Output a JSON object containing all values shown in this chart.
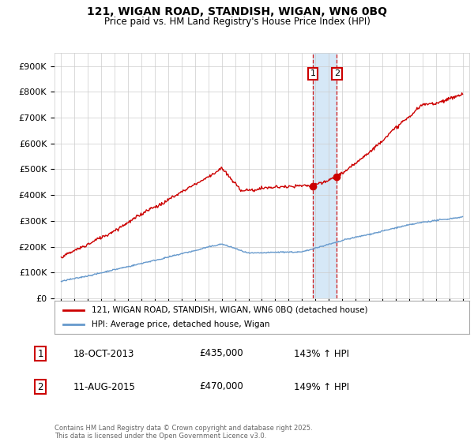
{
  "title": "121, WIGAN ROAD, STANDISH, WIGAN, WN6 0BQ",
  "subtitle": "Price paid vs. HM Land Registry's House Price Index (HPI)",
  "ylim": [
    0,
    950000
  ],
  "yticks": [
    0,
    100000,
    200000,
    300000,
    400000,
    500000,
    600000,
    700000,
    800000,
    900000
  ],
  "ytick_labels": [
    "£0",
    "£100K",
    "£200K",
    "£300K",
    "£400K",
    "£500K",
    "£600K",
    "£700K",
    "£800K",
    "£900K"
  ],
  "transaction1_x": 2013.8,
  "transaction2_x": 2015.6,
  "transaction1_price": 435000,
  "transaction2_price": 470000,
  "transaction1_date": "18-OCT-2013",
  "transaction2_date": "11-AUG-2015",
  "transaction1_hpi": "143% ↑ HPI",
  "transaction2_hpi": "149% ↑ HPI",
  "legend_line1": "121, WIGAN ROAD, STANDISH, WIGAN, WN6 0BQ (detached house)",
  "legend_line2": "HPI: Average price, detached house, Wigan",
  "footer": "Contains HM Land Registry data © Crown copyright and database right 2025.\nThis data is licensed under the Open Government Licence v3.0.",
  "line_color_red": "#cc0000",
  "line_color_blue": "#6699cc",
  "shading_color": "#d6e8f7",
  "background_color": "#ffffff",
  "grid_color": "#cccccc"
}
